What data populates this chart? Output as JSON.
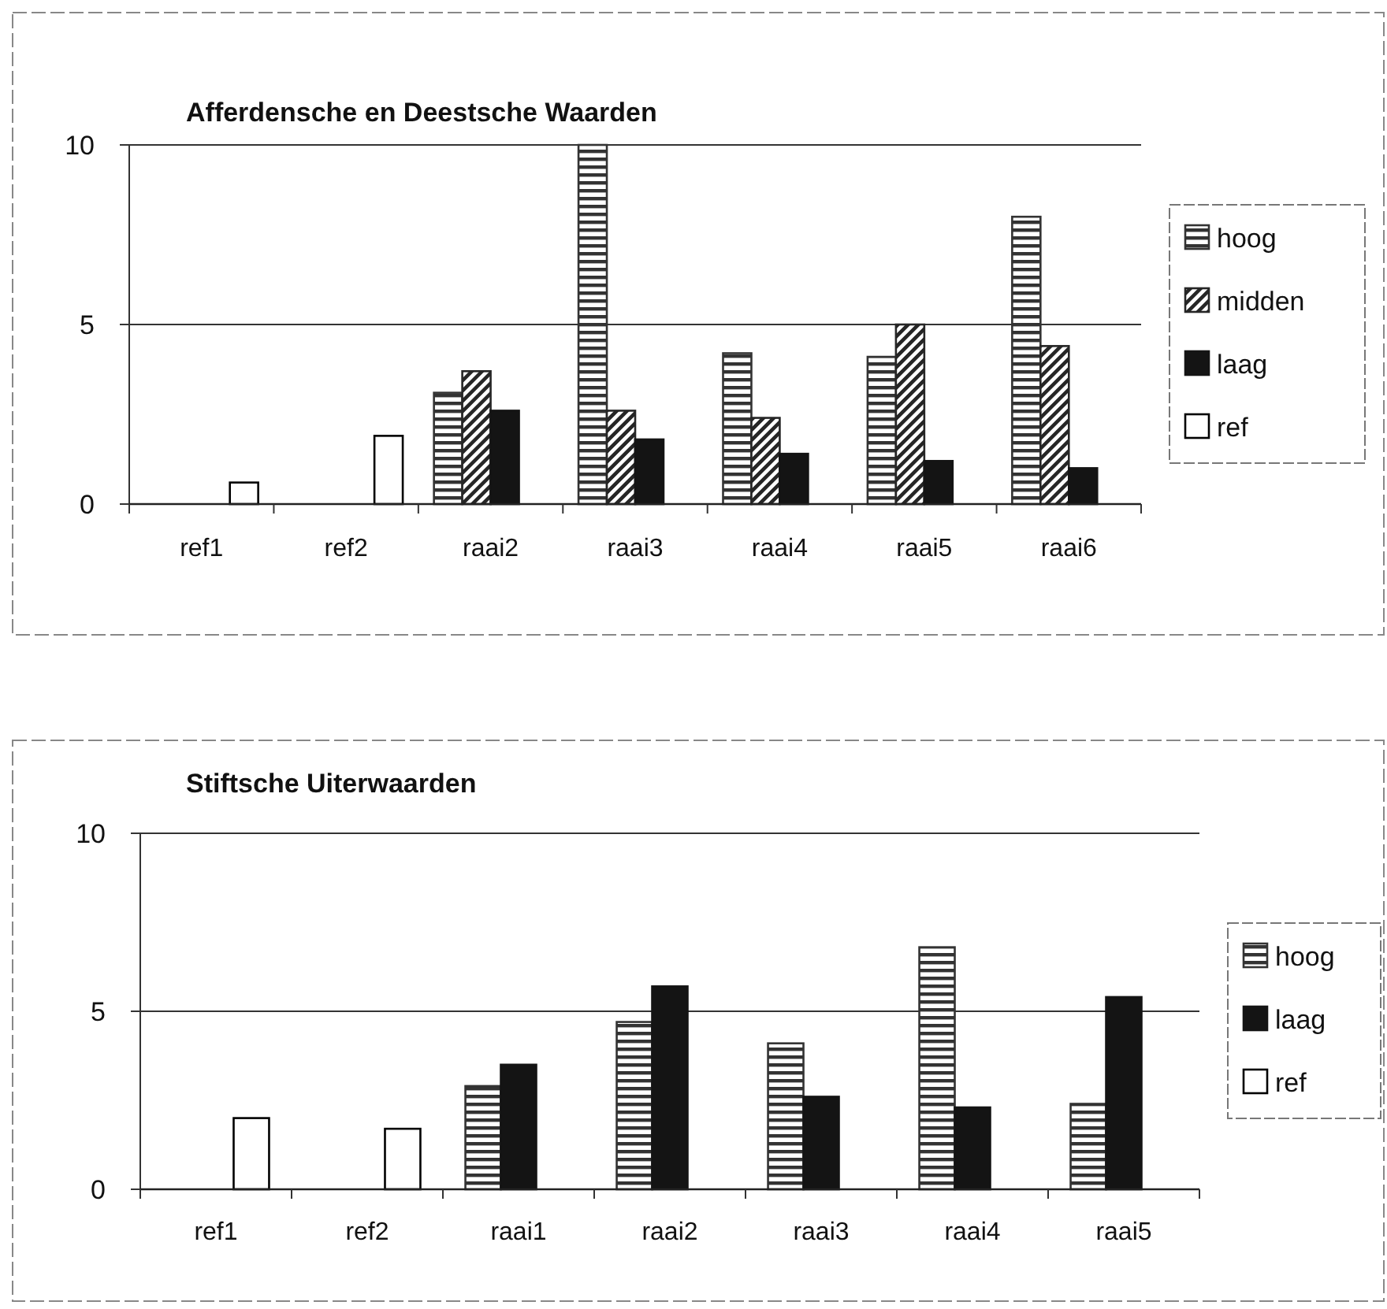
{
  "chart_data": [
    {
      "type": "bar",
      "title": "Afferdensche en Deestsche Waarden",
      "categories": [
        "ref1",
        "ref2",
        "raai2",
        "raai3",
        "raai4",
        "raai5",
        "raai6"
      ],
      "series": [
        {
          "name": "hoog",
          "color": "#333333",
          "values": [
            null,
            null,
            3.1,
            10,
            4.2,
            4.1,
            8.0
          ]
        },
        {
          "name": "midden",
          "color": "#262626",
          "values": [
            null,
            null,
            3.7,
            2.6,
            2.4,
            5.0,
            4.4
          ]
        },
        {
          "name": "laag",
          "color": "#141414",
          "values": [
            null,
            null,
            2.6,
            1.8,
            1.4,
            1.2,
            1.0
          ]
        },
        {
          "name": "ref",
          "color": "#ffffff",
          "values": [
            0.6,
            1.9,
            null,
            null,
            null,
            null,
            null
          ]
        }
      ],
      "ylim": [
        0,
        10
      ],
      "yticks": [
        0,
        5,
        10
      ],
      "grid": "y",
      "legend": "right"
    },
    {
      "type": "bar",
      "title": "Stiftsche Uiterwaarden",
      "categories": [
        "ref1",
        "ref2",
        "raai1",
        "raai2",
        "raai3",
        "raai4",
        "raai5"
      ],
      "series": [
        {
          "name": "hoog",
          "color": "#333333",
          "values": [
            null,
            null,
            2.9,
            4.7,
            4.1,
            6.8,
            2.4
          ]
        },
        {
          "name": "laag",
          "color": "#141414",
          "values": [
            null,
            null,
            3.5,
            5.7,
            2.6,
            2.3,
            5.4
          ]
        },
        {
          "name": "ref",
          "color": "#ffffff",
          "values": [
            2.0,
            1.7,
            null,
            null,
            null,
            null,
            null
          ]
        }
      ],
      "ylim": [
        0,
        10
      ],
      "yticks": [
        0,
        5,
        10
      ],
      "grid": "y",
      "legend": "right"
    }
  ]
}
